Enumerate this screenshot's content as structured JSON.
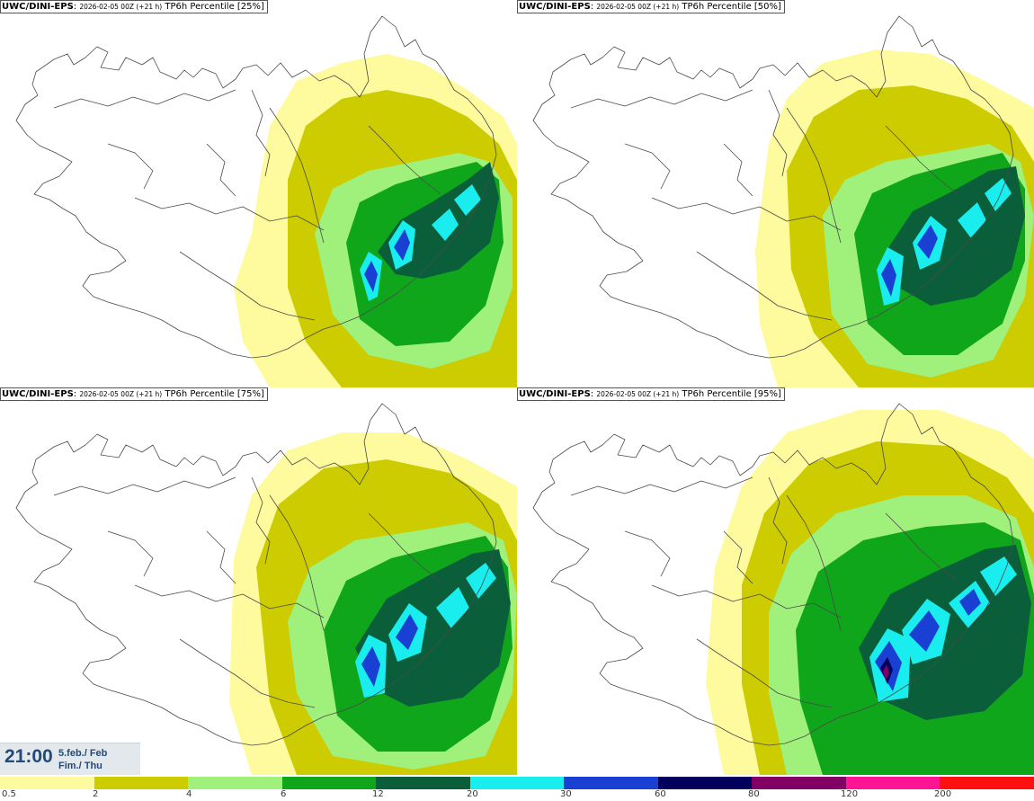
{
  "panels": [
    {
      "source": "UWC/DINI-EPS",
      "run": "2026-02-05 00Z (+21 h)",
      "field": "TP6h Percentile [25%]"
    },
    {
      "source": "UWC/DINI-EPS",
      "run": "2026-02-05 00Z (+21 h)",
      "field": "TP6h Percentile [50%]"
    },
    {
      "source": "UWC/DINI-EPS",
      "run": "2026-02-05 00Z (+21 h)",
      "field": "TP6h Percentile [75%]"
    },
    {
      "source": "UWC/DINI-EPS",
      "run": "2026-02-05 00Z (+21 h)",
      "field": "TP6h Percentile [95%]"
    }
  ],
  "valid_time": {
    "clock": "21:00",
    "date_line": "5.feb./ Feb",
    "day_line": "Fim./ Thu"
  },
  "legend": {
    "ticks": [
      "0.5",
      "2",
      "4",
      "6",
      "12",
      "20",
      "30",
      "60",
      "80",
      "120",
      "200"
    ],
    "colors": [
      "#fdfb9e",
      "#cccc00",
      "#a0f07c",
      "#10a61c",
      "#0a5e3a",
      "#19eded",
      "#1a3fd3",
      "#02005c",
      "#820063",
      "#ff1493",
      "#ff1010"
    ]
  }
}
